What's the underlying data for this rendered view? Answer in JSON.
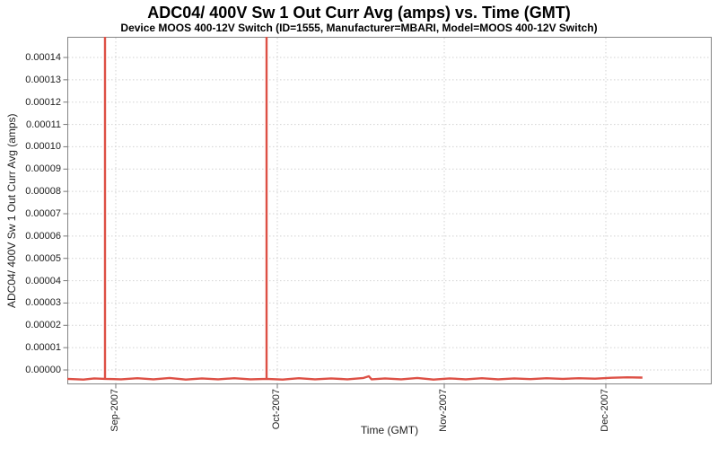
{
  "chart_data": {
    "type": "line",
    "title": "ADC04/ 400V Sw 1 Out Curr Avg (amps) vs. Time (GMT)",
    "subtitle": "Device MOOS 400-12V Switch (ID=1555, Manufacturer=MBARI, Model=MOOS 400-12V Switch)",
    "xlabel": "Time (GMT)",
    "ylabel": "ADC04/ 400V Sw 1 Out Curr Avg (amps)",
    "legend": "none",
    "grid": true,
    "series_color": "#dd5045",
    "x_unit": "days since 2007-08-23",
    "x_range_days": [
      0,
      119.7
    ],
    "ylim": [
      -6.4e-06,
      0.0001493
    ],
    "y_axis": {
      "tick_unit": 1e-05,
      "ticks": [
        {
          "label": "0.00000",
          "value": 0.0
        },
        {
          "label": "0.00001",
          "value": 1e-05
        },
        {
          "label": "0.00002",
          "value": 2e-05
        },
        {
          "label": "0.00003",
          "value": 3e-05
        },
        {
          "label": "0.00004",
          "value": 4e-05
        },
        {
          "label": "0.00005",
          "value": 5e-05
        },
        {
          "label": "0.00006",
          "value": 6e-05
        },
        {
          "label": "0.00007",
          "value": 7e-05
        },
        {
          "label": "0.00008",
          "value": 8e-05
        },
        {
          "label": "0.00009",
          "value": 9e-05
        },
        {
          "label": "0.00010",
          "value": 0.0001
        },
        {
          "label": "0.00011",
          "value": 0.00011
        },
        {
          "label": "0.00012",
          "value": 0.00012
        },
        {
          "label": "0.00013",
          "value": 0.00013
        },
        {
          "label": "0.00014",
          "value": 0.00014
        }
      ]
    },
    "x_axis": {
      "ticks": [
        {
          "label": "Sep-2007",
          "day": 9
        },
        {
          "label": "Oct-2007",
          "day": 39
        },
        {
          "label": "Nov-2007",
          "day": 70
        },
        {
          "label": "Dec-2007",
          "day": 100
        }
      ]
    },
    "series": [
      {
        "name": "ADC04/ 400V Sw 1 Out Curr Avg (amps)",
        "points": [
          [
            0,
            -4e-06
          ],
          [
            3,
            -4.3e-06
          ],
          [
            5,
            -3.8e-06
          ],
          [
            7,
            -4e-06
          ],
          [
            7,
            0.000149
          ],
          [
            7,
            -4e-06
          ],
          [
            10,
            -4.2e-06
          ],
          [
            13,
            -3.7e-06
          ],
          [
            16,
            -4.2e-06
          ],
          [
            19,
            -3.6e-06
          ],
          [
            22,
            -4.3e-06
          ],
          [
            25,
            -3.8e-06
          ],
          [
            28,
            -4.2e-06
          ],
          [
            31,
            -3.7e-06
          ],
          [
            34,
            -4.2e-06
          ],
          [
            37,
            -4e-06
          ],
          [
            37,
            0.000149
          ],
          [
            37,
            -4e-06
          ],
          [
            40,
            -4.3e-06
          ],
          [
            43,
            -3.7e-06
          ],
          [
            46,
            -4.2e-06
          ],
          [
            49,
            -3.8e-06
          ],
          [
            52,
            -4.2e-06
          ],
          [
            55,
            -3.6e-06
          ],
          [
            56,
            -2.8e-06
          ],
          [
            56.5,
            -4.2e-06
          ],
          [
            59,
            -3.8e-06
          ],
          [
            62,
            -4.2e-06
          ],
          [
            65,
            -3.6e-06
          ],
          [
            68,
            -4.3e-06
          ],
          [
            71,
            -3.8e-06
          ],
          [
            74,
            -4.2e-06
          ],
          [
            77,
            -3.7e-06
          ],
          [
            80,
            -4.2e-06
          ],
          [
            83,
            -3.8e-06
          ],
          [
            86,
            -4.1e-06
          ],
          [
            89,
            -3.7e-06
          ],
          [
            92,
            -4e-06
          ],
          [
            95,
            -3.7e-06
          ],
          [
            98,
            -3.9e-06
          ],
          [
            101,
            -3.5e-06
          ],
          [
            104,
            -3.3e-06
          ],
          [
            106.8,
            -3.4e-06
          ]
        ]
      }
    ],
    "annotations": [
      {
        "type": "spike",
        "approx_date": "2007-08-30",
        "peak_amps": 0.000149
      },
      {
        "type": "spike",
        "approx_date": "2007-09-29",
        "peak_amps": 0.000149
      },
      {
        "type": "baseline",
        "amps": -4e-06,
        "from_approx": "2007-08-23",
        "to_approx": "2007-12-08"
      }
    ]
  }
}
